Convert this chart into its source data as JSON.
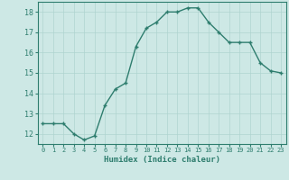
{
  "x": [
    0,
    1,
    2,
    3,
    4,
    5,
    6,
    7,
    8,
    9,
    10,
    11,
    12,
    13,
    14,
    15,
    16,
    17,
    18,
    19,
    20,
    21,
    22,
    23
  ],
  "y": [
    12.5,
    12.5,
    12.5,
    12.0,
    11.7,
    11.9,
    13.4,
    14.2,
    14.5,
    16.3,
    17.2,
    17.5,
    18.0,
    18.0,
    18.2,
    18.2,
    17.5,
    17.0,
    16.5,
    16.5,
    16.5,
    15.5,
    15.1,
    15.0
  ],
  "xlabel": "Humidex (Indice chaleur)",
  "xlim": [
    -0.5,
    23.5
  ],
  "ylim": [
    11.5,
    18.5
  ],
  "yticks": [
    12,
    13,
    14,
    15,
    16,
    17,
    18
  ],
  "xticks": [
    0,
    1,
    2,
    3,
    4,
    5,
    6,
    7,
    8,
    9,
    10,
    11,
    12,
    13,
    14,
    15,
    16,
    17,
    18,
    19,
    20,
    21,
    22,
    23
  ],
  "line_color": "#2e7d6e",
  "marker": "+",
  "bg_color": "#cde8e5",
  "grid_color": "#afd4d0",
  "axis_color": "#2e7d6e",
  "tick_color": "#2e7d6e",
  "label_color": "#2e7d6e"
}
